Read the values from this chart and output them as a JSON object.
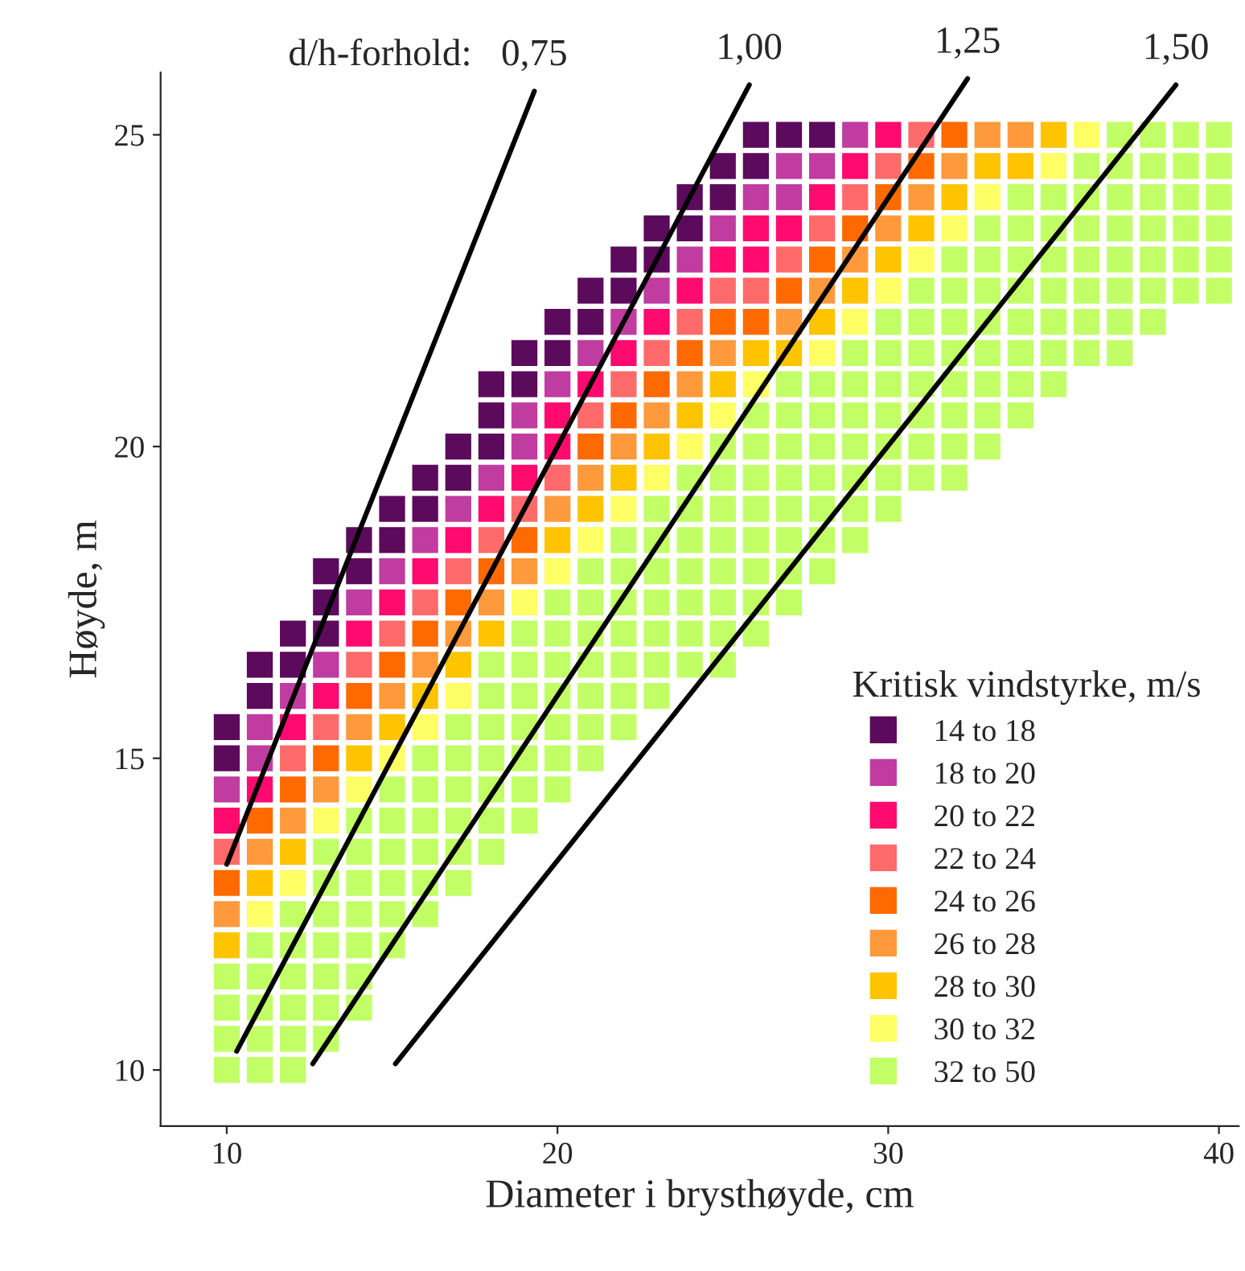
{
  "chart_data": {
    "type": "scatter",
    "xlabel": "Diameter i brysthøyde, cm",
    "ylabel": "Høyde, m",
    "legend_title": "Kritisk vindstyrke, m/s",
    "annotations": [
      "d/h-forhold:"
    ],
    "xlim": [
      8,
      40.6
    ],
    "ylim": [
      9.1,
      26.0
    ],
    "xticks": [
      10,
      20,
      30,
      40
    ],
    "yticks": [
      10,
      15,
      20,
      25
    ],
    "marker": "square",
    "legend": "bottom right",
    "grid": false,
    "series": [
      {
        "name": "14 to 18",
        "color": "#5c0a5c",
        "x": [
          26,
          27,
          28,
          25,
          26,
          24,
          25,
          23,
          24,
          22,
          23,
          21,
          22,
          20,
          21,
          19,
          20,
          18,
          19,
          18,
          17,
          18,
          16,
          17,
          15,
          16,
          14,
          15,
          13,
          14,
          13,
          12,
          13,
          11,
          12,
          11,
          10,
          10
        ],
        "values": [
          25,
          25,
          25,
          24.5,
          24.5,
          24,
          24,
          23.5,
          23.5,
          23,
          23,
          22.5,
          22.5,
          22,
          22,
          21.5,
          21.5,
          21,
          21,
          20.5,
          20,
          20,
          19.5,
          19.5,
          19,
          19,
          18.5,
          18.5,
          18,
          18,
          17.5,
          17,
          17,
          16.5,
          16.5,
          16,
          15.5,
          15
        ]
      },
      {
        "name": "18 to 20",
        "color": "#c03ca0",
        "x": [
          29,
          27,
          28,
          26,
          27,
          25,
          24,
          23,
          22,
          21,
          20,
          19,
          19,
          18,
          17,
          16,
          15,
          14,
          13,
          12,
          11,
          11,
          10
        ],
        "values": [
          25,
          24.5,
          24.5,
          24,
          24,
          23.5,
          23,
          22.5,
          22,
          21.5,
          21,
          20.5,
          20,
          19.5,
          19,
          18.5,
          18,
          17.5,
          16.5,
          16,
          15.5,
          15,
          14.5
        ]
      },
      {
        "name": "20 to 22",
        "color": "#ff0a6e",
        "x": [
          30,
          29,
          28,
          26,
          27,
          25,
          26,
          24,
          23,
          22,
          21,
          20,
          20,
          19,
          18,
          17,
          16,
          15,
          14,
          13,
          12,
          11,
          10
        ],
        "values": [
          25,
          24.5,
          24,
          23.5,
          23.5,
          23,
          23,
          22.5,
          22,
          21.5,
          21,
          20.5,
          20,
          19.5,
          19,
          18.5,
          18,
          17.5,
          17,
          16,
          15.5,
          14.5,
          14
        ]
      },
      {
        "name": "22 to 24",
        "color": "#ff6b6b",
        "x": [
          31,
          30,
          29,
          28,
          27,
          25,
          26,
          24,
          23,
          22,
          21,
          20,
          19,
          18,
          17,
          16,
          15,
          14,
          13,
          12,
          10
        ],
        "values": [
          25,
          24.5,
          24,
          23.5,
          23,
          22.5,
          22.5,
          22,
          21.5,
          21,
          20.5,
          19.5,
          19,
          18.5,
          18,
          17.5,
          17,
          16.5,
          15.5,
          15,
          13.5
        ]
      },
      {
        "name": "24 to 26",
        "color": "#ff6a00",
        "x": [
          32,
          31,
          30,
          29,
          28,
          27,
          25,
          26,
          24,
          23,
          22,
          21,
          19,
          18,
          17,
          16,
          15,
          14,
          13,
          12,
          11,
          10
        ],
        "values": [
          25,
          24.5,
          24,
          23.5,
          23,
          22.5,
          22,
          22,
          21.5,
          21,
          20.5,
          20,
          18.5,
          18,
          17.5,
          17,
          16.5,
          16,
          15,
          14.5,
          14,
          13
        ]
      },
      {
        "name": "26 to 28",
        "color": "#ff9a3c",
        "x": [
          33,
          34,
          32,
          31,
          30,
          29,
          28,
          27,
          25,
          24,
          23,
          22,
          21,
          20,
          19,
          18,
          17,
          16,
          15,
          14,
          13,
          12,
          11,
          10
        ],
        "values": [
          25,
          25,
          24.5,
          24,
          23.5,
          23,
          22.5,
          22,
          21.5,
          21,
          20.5,
          20,
          19.5,
          19,
          18,
          17.5,
          17,
          16.5,
          16,
          15.5,
          14.5,
          14,
          13.5,
          12.5
        ]
      },
      {
        "name": "28 to 30",
        "color": "#ffc400",
        "x": [
          35,
          33,
          34,
          32,
          31,
          30,
          29,
          28,
          26,
          27,
          25,
          24,
          23,
          22,
          21,
          20,
          18,
          17,
          16,
          15,
          14,
          12,
          11,
          10
        ],
        "values": [
          25,
          24.5,
          24.5,
          24,
          23.5,
          23,
          22.5,
          22,
          21.5,
          21.5,
          21,
          20.5,
          20,
          19.5,
          19,
          18.5,
          17,
          16.5,
          16,
          15.5,
          15,
          13.5,
          13,
          12
        ]
      },
      {
        "name": "30 to 32",
        "color": "#ffff66",
        "x": [
          36,
          35,
          33,
          32,
          31,
          30,
          29,
          28,
          26,
          25,
          24,
          23,
          22,
          21,
          20,
          19,
          17,
          16,
          15,
          14,
          13,
          12,
          11
        ],
        "values": [
          25,
          24.5,
          24,
          23.5,
          23,
          22.5,
          22,
          21.5,
          21,
          20.5,
          20,
          19.5,
          19,
          18.5,
          18,
          17.5,
          16,
          15.5,
          15,
          14.5,
          14,
          13,
          12.5
        ]
      },
      {
        "name": "32 to 50",
        "color": "#c2ff66",
        "x": [
          37,
          38,
          39,
          40,
          36,
          37,
          38,
          39,
          40,
          34,
          35,
          36,
          37,
          38,
          39,
          40,
          33,
          34,
          35,
          36,
          37,
          38,
          39,
          40,
          32,
          33,
          34,
          35,
          36,
          37,
          38,
          39,
          40,
          31,
          32,
          33,
          34,
          35,
          36,
          37,
          38,
          39,
          40,
          30,
          31,
          32,
          33,
          34,
          35,
          36,
          37,
          38,
          29,
          30,
          31,
          32,
          33,
          34,
          35,
          36,
          37,
          27,
          28,
          29,
          30,
          31,
          32,
          33,
          34,
          35,
          26,
          27,
          28,
          29,
          30,
          31,
          32,
          33,
          34,
          25,
          26,
          27,
          28,
          29,
          30,
          31,
          32,
          33,
          24,
          25,
          26,
          27,
          28,
          29,
          30,
          31,
          32,
          23,
          24,
          25,
          26,
          27,
          28,
          29,
          30,
          22,
          23,
          24,
          25,
          26,
          27,
          28,
          29,
          21,
          22,
          23,
          24,
          25,
          26,
          27,
          28,
          20,
          21,
          22,
          23,
          24,
          25,
          26,
          27,
          19,
          20,
          21,
          22,
          23,
          24,
          25,
          26,
          18,
          19,
          20,
          21,
          22,
          23,
          24,
          25,
          18,
          19,
          20,
          21,
          22,
          23,
          17,
          18,
          19,
          20,
          21,
          22,
          16,
          17,
          18,
          19,
          20,
          21,
          15,
          16,
          17,
          18,
          19,
          20,
          14,
          15,
          16,
          17,
          18,
          19,
          13,
          14,
          15,
          16,
          17,
          18,
          13,
          14,
          15,
          16,
          17,
          12,
          13,
          14,
          15,
          16,
          11,
          12,
          13,
          14,
          15,
          10,
          11,
          12,
          13,
          14,
          10,
          11,
          12,
          13,
          14,
          10,
          11,
          12,
          13,
          10,
          11,
          12
        ],
        "values": [
          25,
          25,
          25,
          25,
          24.5,
          24.5,
          24.5,
          24.5,
          24.5,
          24,
          24,
          24,
          24,
          24,
          24,
          24,
          23.5,
          23.5,
          23.5,
          23.5,
          23.5,
          23.5,
          23.5,
          23.5,
          23,
          23,
          23,
          23,
          23,
          23,
          23,
          23,
          23,
          22.5,
          22.5,
          22.5,
          22.5,
          22.5,
          22.5,
          22.5,
          22.5,
          22.5,
          22.5,
          22,
          22,
          22,
          22,
          22,
          22,
          22,
          22,
          22,
          21.5,
          21.5,
          21.5,
          21.5,
          21.5,
          21.5,
          21.5,
          21.5,
          21.5,
          21,
          21,
          21,
          21,
          21,
          21,
          21,
          21,
          21,
          20.5,
          20.5,
          20.5,
          20.5,
          20.5,
          20.5,
          20.5,
          20.5,
          20.5,
          20,
          20,
          20,
          20,
          20,
          20,
          20,
          20,
          20,
          19.5,
          19.5,
          19.5,
          19.5,
          19.5,
          19.5,
          19.5,
          19.5,
          19.5,
          19,
          19,
          19,
          19,
          19,
          19,
          19,
          19,
          18.5,
          18.5,
          18.5,
          18.5,
          18.5,
          18.5,
          18.5,
          18.5,
          18,
          18,
          18,
          18,
          18,
          18,
          18,
          18,
          17.5,
          17.5,
          17.5,
          17.5,
          17.5,
          17.5,
          17.5,
          17.5,
          17,
          17,
          17,
          17,
          17,
          17,
          17,
          17,
          16.5,
          16.5,
          16.5,
          16.5,
          16.5,
          16.5,
          16.5,
          16.5,
          16,
          16,
          16,
          16,
          16,
          16,
          15.5,
          15.5,
          15.5,
          15.5,
          15.5,
          15.5,
          15,
          15,
          15,
          15,
          15,
          15,
          14.5,
          14.5,
          14.5,
          14.5,
          14.5,
          14.5,
          14,
          14,
          14,
          14,
          14,
          14,
          13.5,
          13.5,
          13.5,
          13.5,
          13.5,
          13.5,
          13,
          13,
          13,
          13,
          13,
          12.5,
          12.5,
          12.5,
          12.5,
          12.5,
          12,
          12,
          12,
          12,
          12,
          11.5,
          11.5,
          11.5,
          11.5,
          11.5,
          11,
          11,
          11,
          11,
          11,
          10.5,
          10.5,
          10.5,
          10.5,
          10,
          10,
          10
        ]
      },
      {
        "name": "0,75",
        "type": "line",
        "marker": "none",
        "color": "#000000",
        "x": [
          10,
          19.3
        ],
        "values": [
          13.3,
          25.7
        ]
      },
      {
        "name": "1,00",
        "type": "line",
        "marker": "none",
        "color": "#000000",
        "x": [
          10.3,
          25.8
        ],
        "values": [
          10.3,
          25.8
        ]
      },
      {
        "name": "1,25",
        "type": "line",
        "marker": "none",
        "color": "#000000",
        "x": [
          12.6,
          32.4
        ],
        "values": [
          10.1,
          25.9
        ]
      },
      {
        "name": "1,50",
        "type": "line",
        "marker": "none",
        "color": "#000000",
        "x": [
          15.1,
          38.7
        ],
        "values": [
          10.1,
          25.8
        ]
      }
    ]
  }
}
